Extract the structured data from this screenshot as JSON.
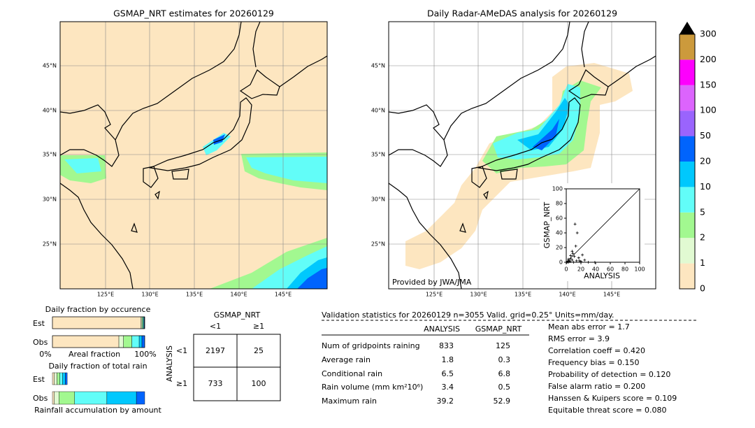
{
  "left_map": {
    "title": "GSMAP_NRT estimates for 20260129",
    "lat_labels": [
      "45°N",
      "40°N",
      "35°N",
      "30°N",
      "25°N"
    ],
    "lon_labels": [
      "125°E",
      "130°E",
      "135°E",
      "140°E",
      "145°E"
    ]
  },
  "right_map": {
    "title": "Daily Radar-AMeDAS analysis for 20260129",
    "lat_labels": [
      "45°N",
      "40°N",
      "35°N",
      "30°N",
      "25°N"
    ],
    "lon_labels": [
      "125°E",
      "130°E",
      "135°E",
      "140°E",
      "145°E"
    ],
    "credit": "Provided by JWA/JMA"
  },
  "scatter": {
    "xlabel": "ANALYSIS",
    "ylabel": "GSMAP_NRT",
    "lim": [
      0,
      100
    ],
    "ticks": [
      0,
      20,
      40,
      60,
      80,
      100
    ],
    "analysis": [
      1,
      2,
      3,
      4,
      5,
      6,
      8,
      9,
      10,
      11,
      12,
      14,
      15,
      17,
      20,
      22,
      25,
      30,
      39,
      8,
      13,
      6,
      3,
      18
    ],
    "gsmap": [
      0,
      1,
      0,
      2,
      1,
      5,
      3,
      12,
      0,
      8,
      52,
      2,
      40,
      6,
      1,
      10,
      3,
      0,
      0,
      15,
      22,
      9,
      4,
      2
    ]
  },
  "colorbar": {
    "levels": [
      0,
      1,
      2,
      5,
      10,
      20,
      50,
      100,
      150,
      200,
      300
    ],
    "colors": [
      "#fde6c0",
      "#e1fad2",
      "#a2f890",
      "#62fdf8",
      "#00c8fd",
      "#0064fd",
      "#9a64fd",
      "#dc64fd",
      "#fd00fd",
      "#cc9a3c"
    ]
  },
  "fraction_occurrence": {
    "title": "Daily fraction by occurence",
    "rows": [
      "Est",
      "Obs"
    ],
    "left": "0%",
    "middle": "Areal fraction",
    "right": "100%",
    "est": [
      96,
      1,
      1,
      1,
      0.5,
      0.5
    ],
    "obs": [
      72,
      5,
      9,
      8,
      3,
      3
    ]
  },
  "fraction_rain": {
    "title": "Daily fraction of total rain",
    "rows": [
      "Est",
      "Obs"
    ],
    "xlabel": "Rainfall accumulation by amount",
    "est": [
      2,
      3,
      3,
      3,
      3,
      2
    ],
    "obs": [
      2,
      5,
      17,
      35,
      32,
      9
    ]
  },
  "fraction_colors": [
    "#fde6c0",
    "#e1fad2",
    "#a2f890",
    "#62fdf8",
    "#00c8fd",
    "#0064fd"
  ],
  "contingency": {
    "title": "GSMAP_NRT",
    "col_headers": [
      "<1",
      "≥1"
    ],
    "row_label": "ANALYSIS",
    "row_headers": [
      "<1",
      "≥1"
    ],
    "cells": [
      [
        2197,
        25
      ],
      [
        733,
        100
      ]
    ]
  },
  "validation": {
    "header": "Validation statistics for 20260129  n=3055 Valid. grid=0.25° Units=mm/day.",
    "columns": [
      "ANALYSIS",
      "GSMAP_NRT"
    ],
    "rows": [
      {
        "label": "Num of gridpoints raining",
        "values": [
          833,
          125
        ]
      },
      {
        "label": "Average rain",
        "values": [
          1.8,
          0.3
        ]
      },
      {
        "label": "Conditional rain",
        "values": [
          6.5,
          6.8
        ]
      },
      {
        "label": "Rain volume (mm km²10⁶)",
        "values": [
          3.4,
          0.5
        ]
      },
      {
        "label": "Maximum rain",
        "values": [
          39.2,
          52.9
        ]
      }
    ],
    "scores": [
      "Mean abs error =    1.7",
      "RMS error =    3.9",
      "Correlation coeff =  0.420",
      "Frequency bias =  0.150",
      "Probability of detection =  0.120",
      "False alarm ratio =  0.200",
      "Hanssen & Kuipers score =  0.109",
      "Equitable threat score =  0.080"
    ]
  }
}
